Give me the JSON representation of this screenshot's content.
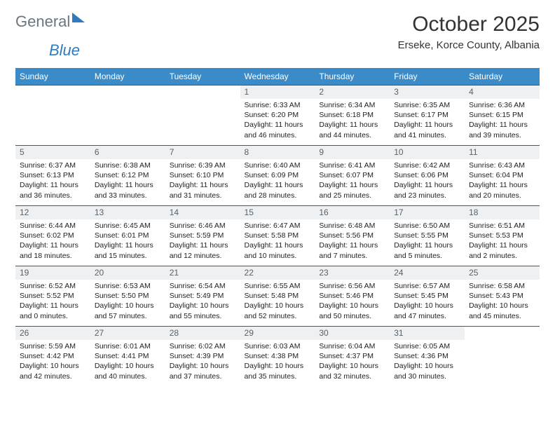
{
  "brand": {
    "part1": "General",
    "part2": "Blue"
  },
  "title": "October 2025",
  "subtitle": "Erseke, Korce County, Albania",
  "colors": {
    "header_bg": "#3b8bc8",
    "header_text": "#ffffff",
    "daynum_bg": "#eef0f1",
    "row_border": "#2b5f8a",
    "brand_gray": "#6b7680",
    "brand_blue": "#2f7bbf"
  },
  "weekdays": [
    "Sunday",
    "Monday",
    "Tuesday",
    "Wednesday",
    "Thursday",
    "Friday",
    "Saturday"
  ],
  "weeks": [
    [
      {
        "n": "",
        "l": [
          "",
          "",
          "",
          ""
        ],
        "empty": true
      },
      {
        "n": "",
        "l": [
          "",
          "",
          "",
          ""
        ],
        "empty": true
      },
      {
        "n": "",
        "l": [
          "",
          "",
          "",
          ""
        ],
        "empty": true
      },
      {
        "n": "1",
        "l": [
          "Sunrise: 6:33 AM",
          "Sunset: 6:20 PM",
          "Daylight: 11 hours",
          "and 46 minutes."
        ]
      },
      {
        "n": "2",
        "l": [
          "Sunrise: 6:34 AM",
          "Sunset: 6:18 PM",
          "Daylight: 11 hours",
          "and 44 minutes."
        ]
      },
      {
        "n": "3",
        "l": [
          "Sunrise: 6:35 AM",
          "Sunset: 6:17 PM",
          "Daylight: 11 hours",
          "and 41 minutes."
        ]
      },
      {
        "n": "4",
        "l": [
          "Sunrise: 6:36 AM",
          "Sunset: 6:15 PM",
          "Daylight: 11 hours",
          "and 39 minutes."
        ]
      }
    ],
    [
      {
        "n": "5",
        "l": [
          "Sunrise: 6:37 AM",
          "Sunset: 6:13 PM",
          "Daylight: 11 hours",
          "and 36 minutes."
        ]
      },
      {
        "n": "6",
        "l": [
          "Sunrise: 6:38 AM",
          "Sunset: 6:12 PM",
          "Daylight: 11 hours",
          "and 33 minutes."
        ]
      },
      {
        "n": "7",
        "l": [
          "Sunrise: 6:39 AM",
          "Sunset: 6:10 PM",
          "Daylight: 11 hours",
          "and 31 minutes."
        ]
      },
      {
        "n": "8",
        "l": [
          "Sunrise: 6:40 AM",
          "Sunset: 6:09 PM",
          "Daylight: 11 hours",
          "and 28 minutes."
        ]
      },
      {
        "n": "9",
        "l": [
          "Sunrise: 6:41 AM",
          "Sunset: 6:07 PM",
          "Daylight: 11 hours",
          "and 25 minutes."
        ]
      },
      {
        "n": "10",
        "l": [
          "Sunrise: 6:42 AM",
          "Sunset: 6:06 PM",
          "Daylight: 11 hours",
          "and 23 minutes."
        ]
      },
      {
        "n": "11",
        "l": [
          "Sunrise: 6:43 AM",
          "Sunset: 6:04 PM",
          "Daylight: 11 hours",
          "and 20 minutes."
        ]
      }
    ],
    [
      {
        "n": "12",
        "l": [
          "Sunrise: 6:44 AM",
          "Sunset: 6:02 PM",
          "Daylight: 11 hours",
          "and 18 minutes."
        ]
      },
      {
        "n": "13",
        "l": [
          "Sunrise: 6:45 AM",
          "Sunset: 6:01 PM",
          "Daylight: 11 hours",
          "and 15 minutes."
        ]
      },
      {
        "n": "14",
        "l": [
          "Sunrise: 6:46 AM",
          "Sunset: 5:59 PM",
          "Daylight: 11 hours",
          "and 12 minutes."
        ]
      },
      {
        "n": "15",
        "l": [
          "Sunrise: 6:47 AM",
          "Sunset: 5:58 PM",
          "Daylight: 11 hours",
          "and 10 minutes."
        ]
      },
      {
        "n": "16",
        "l": [
          "Sunrise: 6:48 AM",
          "Sunset: 5:56 PM",
          "Daylight: 11 hours",
          "and 7 minutes."
        ]
      },
      {
        "n": "17",
        "l": [
          "Sunrise: 6:50 AM",
          "Sunset: 5:55 PM",
          "Daylight: 11 hours",
          "and 5 minutes."
        ]
      },
      {
        "n": "18",
        "l": [
          "Sunrise: 6:51 AM",
          "Sunset: 5:53 PM",
          "Daylight: 11 hours",
          "and 2 minutes."
        ]
      }
    ],
    [
      {
        "n": "19",
        "l": [
          "Sunrise: 6:52 AM",
          "Sunset: 5:52 PM",
          "Daylight: 11 hours",
          "and 0 minutes."
        ]
      },
      {
        "n": "20",
        "l": [
          "Sunrise: 6:53 AM",
          "Sunset: 5:50 PM",
          "Daylight: 10 hours",
          "and 57 minutes."
        ]
      },
      {
        "n": "21",
        "l": [
          "Sunrise: 6:54 AM",
          "Sunset: 5:49 PM",
          "Daylight: 10 hours",
          "and 55 minutes."
        ]
      },
      {
        "n": "22",
        "l": [
          "Sunrise: 6:55 AM",
          "Sunset: 5:48 PM",
          "Daylight: 10 hours",
          "and 52 minutes."
        ]
      },
      {
        "n": "23",
        "l": [
          "Sunrise: 6:56 AM",
          "Sunset: 5:46 PM",
          "Daylight: 10 hours",
          "and 50 minutes."
        ]
      },
      {
        "n": "24",
        "l": [
          "Sunrise: 6:57 AM",
          "Sunset: 5:45 PM",
          "Daylight: 10 hours",
          "and 47 minutes."
        ]
      },
      {
        "n": "25",
        "l": [
          "Sunrise: 6:58 AM",
          "Sunset: 5:43 PM",
          "Daylight: 10 hours",
          "and 45 minutes."
        ]
      }
    ],
    [
      {
        "n": "26",
        "l": [
          "Sunrise: 5:59 AM",
          "Sunset: 4:42 PM",
          "Daylight: 10 hours",
          "and 42 minutes."
        ]
      },
      {
        "n": "27",
        "l": [
          "Sunrise: 6:01 AM",
          "Sunset: 4:41 PM",
          "Daylight: 10 hours",
          "and 40 minutes."
        ]
      },
      {
        "n": "28",
        "l": [
          "Sunrise: 6:02 AM",
          "Sunset: 4:39 PM",
          "Daylight: 10 hours",
          "and 37 minutes."
        ]
      },
      {
        "n": "29",
        "l": [
          "Sunrise: 6:03 AM",
          "Sunset: 4:38 PM",
          "Daylight: 10 hours",
          "and 35 minutes."
        ]
      },
      {
        "n": "30",
        "l": [
          "Sunrise: 6:04 AM",
          "Sunset: 4:37 PM",
          "Daylight: 10 hours",
          "and 32 minutes."
        ]
      },
      {
        "n": "31",
        "l": [
          "Sunrise: 6:05 AM",
          "Sunset: 4:36 PM",
          "Daylight: 10 hours",
          "and 30 minutes."
        ]
      },
      {
        "n": "",
        "l": [
          "",
          "",
          "",
          ""
        ],
        "empty": true
      }
    ]
  ]
}
